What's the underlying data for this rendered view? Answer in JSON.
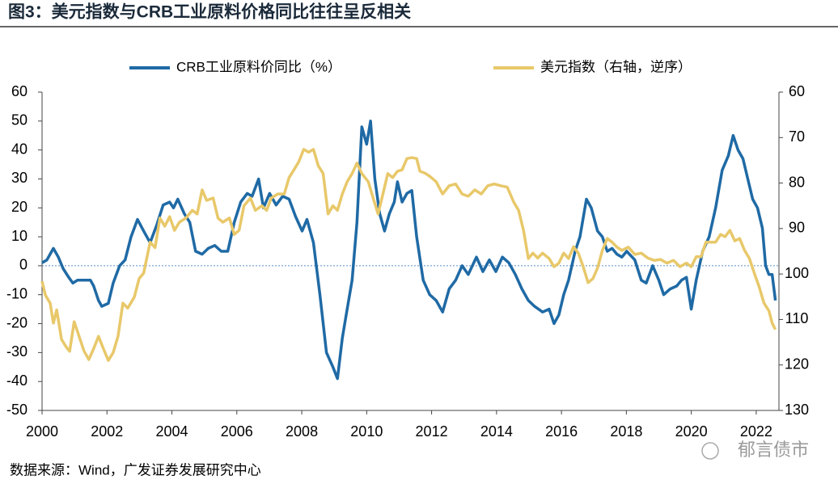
{
  "chart_data": {
    "type": "line",
    "title": "图3：美元指数与CRB工业原料价格同比往往呈反相关",
    "source": "数据来源：Wind，广发证券发展研究中心",
    "watermark": "郁言债市",
    "legend": "top",
    "zero_line": true,
    "xlim": [
      2000,
      2022.7
    ],
    "xticks": [
      2000,
      2002,
      2004,
      2006,
      2008,
      2010,
      2012,
      2014,
      2016,
      2018,
      2020,
      2022
    ],
    "ylim": [
      -50,
      60
    ],
    "yticks": [
      -50,
      -40,
      -30,
      -20,
      -10,
      0,
      10,
      20,
      30,
      40,
      50,
      60
    ],
    "y2lim": [
      130,
      60
    ],
    "y2ticks": [
      60,
      70,
      80,
      90,
      100,
      110,
      120,
      130
    ],
    "series": [
      {
        "name": "CRB工业原料价同比（%）",
        "color": "#1f6aa5",
        "x": [
          2000.0,
          2000.15,
          2000.35,
          2000.5,
          2000.65,
          2000.82,
          2000.95,
          2001.09,
          2001.32,
          2001.49,
          2001.59,
          2001.74,
          2001.84,
          2002.04,
          2002.19,
          2002.39,
          2002.56,
          2002.74,
          2002.94,
          2003.13,
          2003.33,
          2003.53,
          2003.73,
          2003.93,
          2004.05,
          2004.18,
          2004.38,
          2004.55,
          2004.73,
          2004.93,
          2005.12,
          2005.32,
          2005.52,
          2005.72,
          2005.92,
          2006.12,
          2006.32,
          2006.47,
          2006.67,
          2006.82,
          2007.01,
          2007.21,
          2007.41,
          2007.61,
          2007.81,
          2008.01,
          2008.16,
          2008.36,
          2008.56,
          2008.76,
          2008.96,
          2009.1,
          2009.25,
          2009.4,
          2009.55,
          2009.7,
          2009.85,
          2010.0,
          2010.12,
          2010.25,
          2010.4,
          2010.55,
          2010.7,
          2010.85,
          2010.95,
          2011.09,
          2011.24,
          2011.39,
          2011.54,
          2011.74,
          2011.94,
          2012.14,
          2012.34,
          2012.54,
          2012.74,
          2012.94,
          2013.13,
          2013.38,
          2013.58,
          2013.78,
          2013.98,
          2014.18,
          2014.38,
          2014.58,
          2014.78,
          2014.98,
          2015.17,
          2015.42,
          2015.62,
          2015.77,
          2015.92,
          2016.07,
          2016.22,
          2016.42,
          2016.57,
          2016.77,
          2016.92,
          2017.11,
          2017.26,
          2017.41,
          2017.56,
          2017.71,
          2017.86,
          2018.01,
          2018.26,
          2018.46,
          2018.61,
          2018.81,
          2019.0,
          2019.15,
          2019.35,
          2019.55,
          2019.7,
          2019.85,
          2020.0,
          2020.15,
          2020.35,
          2020.55,
          2020.75,
          2020.95,
          2021.14,
          2021.29,
          2021.44,
          2021.59,
          2021.74,
          2021.89,
          2022.04,
          2022.19,
          2022.29,
          2022.39,
          2022.49,
          2022.59
        ],
        "values": [
          1,
          2,
          6,
          3,
          -1,
          -4,
          -6,
          -5,
          -5,
          -5,
          -7,
          -12,
          -14,
          -13,
          -6,
          0,
          2,
          10,
          16,
          12,
          8,
          14,
          21,
          22,
          20,
          23,
          18,
          15,
          5,
          4,
          6,
          7,
          5,
          5,
          15,
          22,
          25,
          24,
          30,
          20,
          25,
          21,
          24,
          23,
          17,
          12,
          16,
          8,
          -10,
          -30,
          -35,
          -39,
          -25,
          -15,
          -5,
          15,
          48,
          42,
          50,
          30,
          18,
          12,
          18,
          22,
          29,
          22,
          25,
          26,
          10,
          -5,
          -10,
          -12,
          -16,
          -8,
          -5,
          0,
          -3,
          3,
          -2,
          2,
          -2,
          3,
          1,
          -3,
          -8,
          -12,
          -14,
          -16,
          -15,
          -20,
          -17,
          -10,
          -5,
          5,
          10,
          23,
          20,
          12,
          10,
          5,
          6,
          4,
          3,
          5,
          2,
          -5,
          -6,
          0,
          -5,
          -10,
          -8,
          -7,
          -5,
          -4,
          -15,
          -5,
          5,
          10,
          20,
          33,
          38,
          45,
          40,
          37,
          30,
          23,
          20,
          13,
          0,
          -3,
          -3,
          -12
        ]
      },
      {
        "name": "美元指数（右轴，逆序）",
        "color": "#e8c86a",
        "axis": "y2",
        "x": [
          2000.0,
          2000.1,
          2000.25,
          2000.35,
          2000.45,
          2000.6,
          2000.75,
          2000.85,
          2000.99,
          2001.14,
          2001.29,
          2001.44,
          2001.59,
          2001.74,
          2001.89,
          2002.04,
          2002.19,
          2002.34,
          2002.49,
          2002.64,
          2002.84,
          2002.99,
          2003.13,
          2003.33,
          2003.48,
          2003.63,
          2003.78,
          2003.93,
          2004.08,
          2004.23,
          2004.43,
          2004.63,
          2004.78,
          2004.93,
          2005.07,
          2005.27,
          2005.42,
          2005.57,
          2005.77,
          2005.92,
          2006.07,
          2006.22,
          2006.42,
          2006.57,
          2006.77,
          2006.92,
          2007.06,
          2007.26,
          2007.46,
          2007.61,
          2007.76,
          2007.91,
          2008.06,
          2008.21,
          2008.36,
          2008.51,
          2008.66,
          2008.81,
          2008.96,
          2009.1,
          2009.25,
          2009.4,
          2009.55,
          2009.7,
          2009.85,
          2010.05,
          2010.2,
          2010.35,
          2010.5,
          2010.65,
          2010.8,
          2010.95,
          2011.09,
          2011.24,
          2011.39,
          2011.54,
          2011.64,
          2011.79,
          2011.94,
          2012.14,
          2012.34,
          2012.54,
          2012.74,
          2012.94,
          2013.13,
          2013.33,
          2013.53,
          2013.73,
          2013.93,
          2014.13,
          2014.33,
          2014.53,
          2014.68,
          2014.83,
          2014.98,
          2015.12,
          2015.27,
          2015.42,
          2015.62,
          2015.77,
          2015.92,
          2016.07,
          2016.22,
          2016.37,
          2016.52,
          2016.67,
          2016.82,
          2016.97,
          2017.11,
          2017.26,
          2017.41,
          2017.56,
          2017.71,
          2017.86,
          2018.06,
          2018.26,
          2018.46,
          2018.66,
          2018.86,
          2019.05,
          2019.25,
          2019.45,
          2019.65,
          2019.85,
          2020.0,
          2020.15,
          2020.3,
          2020.45,
          2020.6,
          2020.75,
          2020.9,
          2021.04,
          2021.19,
          2021.34,
          2021.49,
          2021.64,
          2021.79,
          2021.94,
          2022.09,
          2022.24,
          2022.39,
          2022.49,
          2022.59
        ],
        "values": [
          101.6,
          104.6,
          106.4,
          110.8,
          107.9,
          114.4,
          116.1,
          117,
          110.5,
          113.7,
          116.9,
          118.8,
          116.4,
          113.7,
          116.4,
          119,
          117.3,
          113.7,
          106.4,
          107.5,
          105.1,
          101,
          99.8,
          93,
          94.2,
          87.7,
          89.5,
          87.4,
          90.4,
          88.6,
          87.7,
          86,
          86.8,
          81.5,
          83.8,
          83.3,
          87.7,
          88.6,
          87.7,
          91.3,
          90.4,
          85,
          83.3,
          86,
          85,
          86,
          83.3,
          82.4,
          82.4,
          78.8,
          77.1,
          75.3,
          72.6,
          73.2,
          72.6,
          76.2,
          77.9,
          86.8,
          85,
          86,
          82.4,
          79.7,
          77.9,
          75.6,
          77.9,
          79.7,
          83.3,
          86.8,
          82.4,
          77.9,
          78.8,
          77.4,
          77.1,
          74.6,
          74.4,
          74.6,
          77.4,
          77.8,
          78.5,
          79.7,
          82.4,
          80.6,
          80.2,
          82.4,
          82.9,
          81.5,
          82.4,
          80.6,
          80.2,
          80.6,
          80.9,
          84.2,
          86,
          90.4,
          96.6,
          95.4,
          96.5,
          95.4,
          96.6,
          98.4,
          97.6,
          95.4,
          96.6,
          94,
          95.4,
          98.4,
          101.9,
          101,
          98.7,
          94.8,
          92.2,
          93,
          94.1,
          94.8,
          94.1,
          95.7,
          95.4,
          96.5,
          97,
          96.8,
          97.6,
          97,
          98.4,
          97.6,
          98.4,
          96.2,
          96.2,
          93,
          93,
          93,
          91.3,
          91.8,
          90.4,
          92.7,
          92.2,
          94.8,
          96.6,
          99.8,
          102.8,
          106.4,
          108.1,
          110.8,
          112.2
        ]
      }
    ]
  }
}
